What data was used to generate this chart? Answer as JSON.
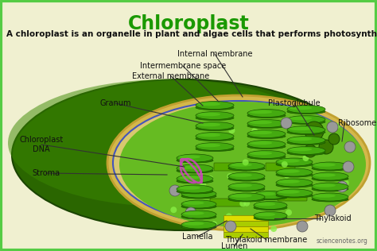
{
  "title": "Chloroplast",
  "title_color": "#1a9900",
  "subtitle": "A chloroplast is an organelle in plant and algae cells that performs photosynthesis.",
  "bg_color": "#f0f0d0",
  "border_color": "#55cc44",
  "watermark": "sciencenotes.org",
  "outer_shell_color": "#2a6600",
  "outer_shell_mid_color": "#3a8800",
  "yellow_band_color": "#d4b84a",
  "yellow_band_edge": "#c0a030",
  "blue_line_color": "#4455bb",
  "stroma_color": "#66bb22",
  "stroma_dark_color": "#558800",
  "granum_top_color": "#44aa10",
  "granum_side_color": "#2a7a00",
  "granum_edge_color": "#1a5500",
  "thylakoid_yellow": "#dddd00",
  "thylakoid_green": "#aacc00",
  "plastoglobule_color": "#3a7a00",
  "ribosome_color": "#999999",
  "dna_color": "#cc44bb",
  "small_dot_color": "#88ee44"
}
